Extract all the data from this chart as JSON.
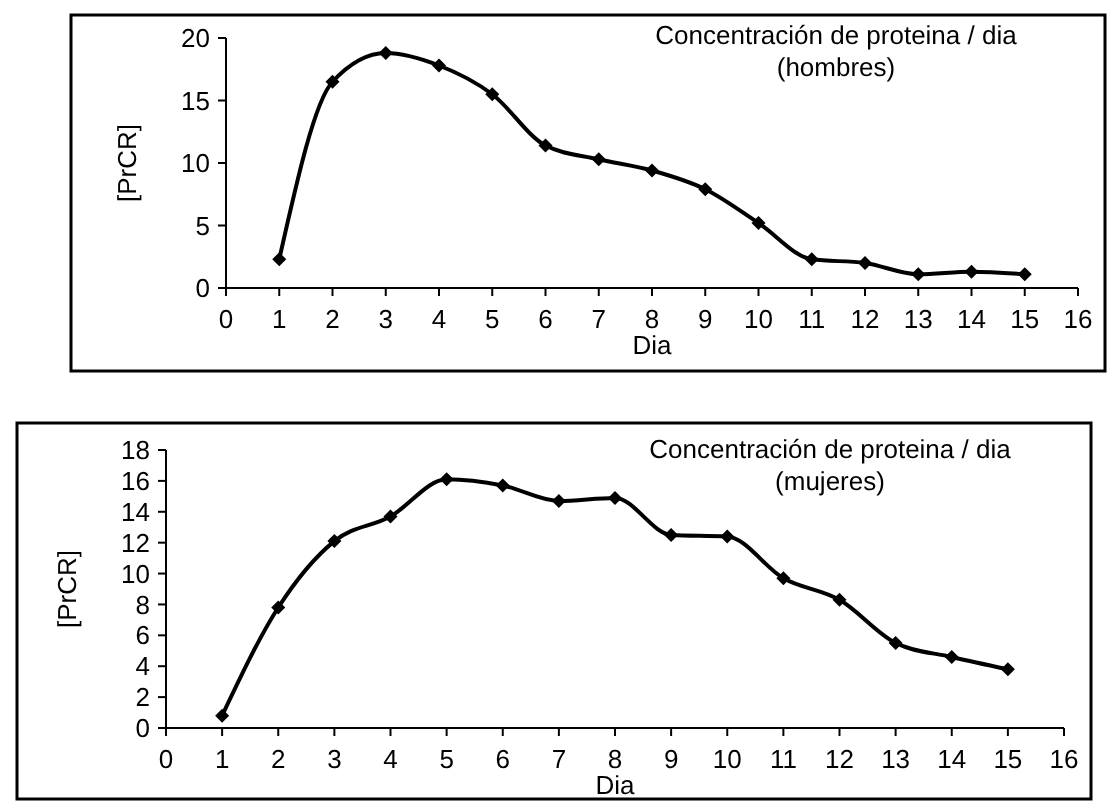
{
  "chart_data": [
    {
      "type": "line",
      "title": "Concentración de proteina / dia",
      "subtitle": "(hombres)",
      "xlabel": "Dia",
      "ylabel": "[PrCR]",
      "x": [
        1,
        2,
        3,
        4,
        5,
        6,
        7,
        8,
        9,
        10,
        11,
        12,
        13,
        14,
        15
      ],
      "series": [
        {
          "color": "#000000",
          "values": [
            2.3,
            16.5,
            18.8,
            17.8,
            15.5,
            11.4,
            10.3,
            9.4,
            7.9,
            5.2,
            2.3,
            2.0,
            1.1,
            1.3,
            1.1
          ]
        }
      ],
      "xlim": [
        0,
        16
      ],
      "xticks": [
        0,
        1,
        2,
        3,
        4,
        5,
        6,
        7,
        8,
        9,
        10,
        11,
        12,
        13,
        14,
        15,
        16
      ],
      "ylim": [
        0,
        20
      ],
      "yticks": [
        0,
        5,
        10,
        15,
        20
      ],
      "marker": "diamond",
      "line_style": "solid",
      "grid": false
    },
    {
      "type": "line",
      "title": "Concentración de proteina / dia",
      "subtitle": "(mujeres)",
      "xlabel": "Dia",
      "ylabel": "[PrCR]",
      "x": [
        1,
        2,
        3,
        4,
        5,
        6,
        7,
        8,
        9,
        10,
        11,
        12,
        13,
        14,
        15
      ],
      "series": [
        {
          "color": "#000000",
          "values": [
            0.8,
            7.8,
            12.1,
            13.7,
            16.1,
            15.7,
            14.7,
            14.9,
            12.5,
            12.4,
            9.7,
            8.3,
            5.5,
            4.6,
            3.8
          ]
        }
      ],
      "xlim": [
        0,
        16
      ],
      "xticks": [
        0,
        1,
        2,
        3,
        4,
        5,
        6,
        7,
        8,
        9,
        10,
        11,
        12,
        13,
        14,
        15,
        16
      ],
      "ylim": [
        0,
        18
      ],
      "yticks": [
        0,
        2,
        4,
        6,
        8,
        10,
        12,
        14,
        16,
        18
      ],
      "marker": "diamond",
      "line_style": "solid",
      "grid": false
    }
  ]
}
